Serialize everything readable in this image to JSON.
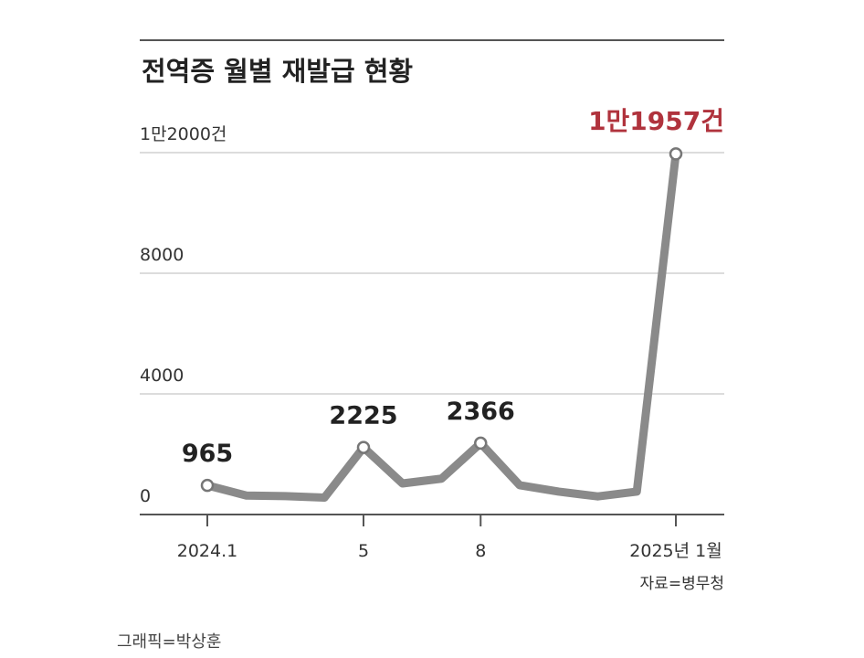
{
  "chart_data": {
    "type": "line",
    "title": "전역증 월별 재발급 현황",
    "y_tick_labels": [
      "0",
      "4000",
      "8000",
      "1만2000건"
    ],
    "y_tick_values": [
      0,
      4000,
      8000,
      12000
    ],
    "ylim": [
      0,
      12000
    ],
    "x_tick_labels": [
      "2024.1",
      "5",
      "8",
      "2025년 1월"
    ],
    "x_tick_indices": [
      0,
      4,
      7,
      12
    ],
    "x": [
      "2024.1",
      "2024.2",
      "2024.3",
      "2024.4",
      "2024.5",
      "2024.6",
      "2024.7",
      "2024.8",
      "2024.9",
      "2024.10",
      "2024.11",
      "2024.12",
      "2025.1"
    ],
    "values": [
      965,
      630,
      610,
      560,
      2225,
      1030,
      1190,
      2366,
      970,
      760,
      600,
      760,
      11957
    ],
    "data_labels": [
      {
        "index": 0,
        "text": "965"
      },
      {
        "index": 4,
        "text": "2225"
      },
      {
        "index": 7,
        "text": "2366"
      },
      {
        "index": 12,
        "text": "1만1957건"
      }
    ],
    "source": "자료=병무청",
    "grid": true,
    "colors": {
      "line": "#8a8a8a",
      "highlight": "#b0333d",
      "grid": "#d0d0d0",
      "axis": "#555555"
    }
  },
  "credit": "그래픽=박상훈"
}
